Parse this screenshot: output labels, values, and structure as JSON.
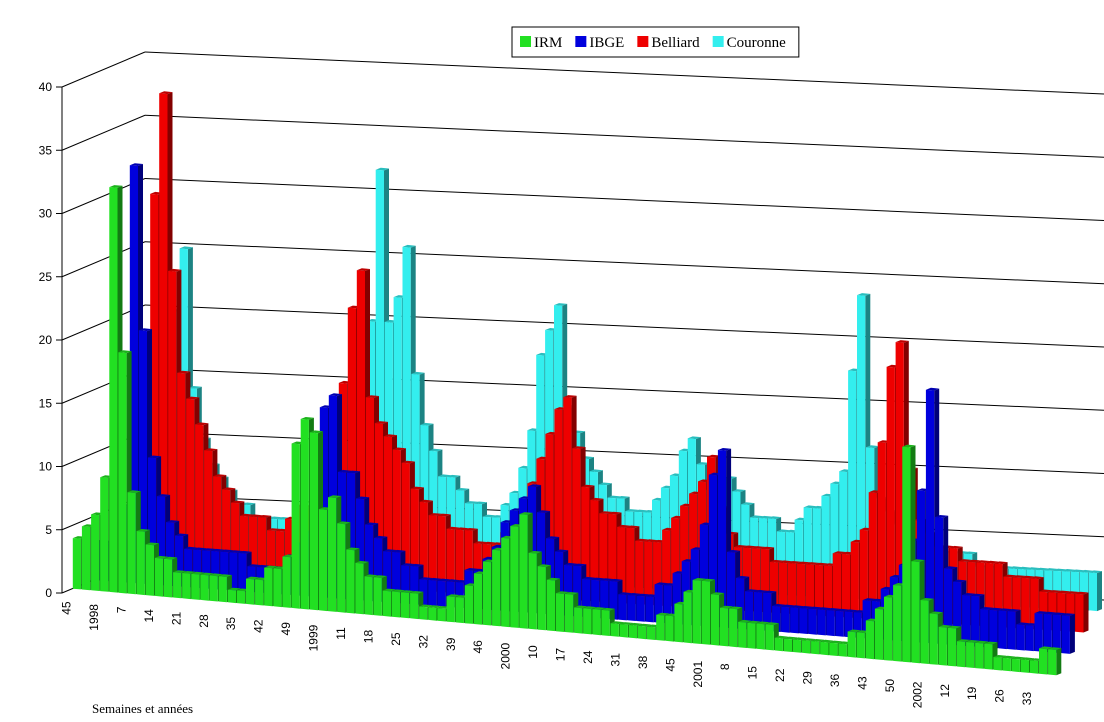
{
  "chart_data": {
    "type": "bar3d",
    "x_label": "Semaines et années",
    "legend": "top",
    "categories": [
      "45",
      null,
      null,
      "1998",
      null,
      null,
      "7",
      null,
      null,
      "14",
      null,
      null,
      "21",
      null,
      null,
      "28",
      null,
      null,
      "35",
      null,
      null,
      "42",
      null,
      null,
      "49",
      null,
      null,
      "1999",
      null,
      null,
      "11",
      null,
      null,
      "18",
      null,
      null,
      "25",
      null,
      null,
      "32",
      null,
      null,
      "39",
      null,
      null,
      "46",
      null,
      null,
      "2000",
      null,
      null,
      "10",
      null,
      null,
      "17",
      null,
      null,
      "24",
      null,
      null,
      "31",
      null,
      null,
      "38",
      null,
      null,
      "45",
      null,
      null,
      "2001",
      null,
      null,
      "8",
      null,
      null,
      "15",
      null,
      null,
      "22",
      null,
      null,
      "29",
      null,
      null,
      "36",
      null,
      null,
      "43",
      null,
      null,
      "50",
      null,
      null,
      "2002",
      null,
      null,
      "12",
      null,
      null,
      "19",
      null,
      null,
      "26",
      null,
      null,
      "33",
      null,
      null
    ],
    "series": [
      {
        "name": "IRM",
        "color": "#22e022",
        "values": [
          4,
          5,
          6,
          9,
          32,
          19,
          8,
          5,
          4,
          3,
          3,
          2,
          2,
          2,
          2,
          2,
          2,
          1,
          1,
          2,
          2,
          3,
          3,
          4,
          13,
          15,
          14,
          8,
          9,
          7,
          5,
          4,
          3,
          3,
          2,
          2,
          2,
          2,
          1,
          1,
          1,
          2,
          2,
          3,
          4,
          5,
          6,
          7,
          8,
          9,
          6,
          5,
          4,
          3,
          3,
          2,
          2,
          2,
          2,
          1,
          1,
          1,
          1,
          1,
          2,
          2,
          3,
          4,
          5,
          5,
          4,
          3,
          3,
          2,
          2,
          2,
          2,
          1,
          1,
          1,
          1,
          1,
          1,
          1,
          1,
          2,
          2,
          3,
          4,
          5,
          6,
          17,
          8,
          5,
          4,
          3,
          3,
          2,
          2,
          2,
          2,
          1,
          1,
          1,
          1,
          1,
          2,
          2
        ]
      },
      {
        "name": "IBGE",
        "color": "#0000dd",
        "values": [
          3,
          3,
          4,
          6,
          33,
          20,
          10,
          7,
          5,
          4,
          3,
          3,
          3,
          3,
          3,
          3,
          3,
          2,
          2,
          2,
          2,
          3,
          4,
          5,
          10,
          15,
          16,
          10,
          10,
          8,
          6,
          5,
          4,
          4,
          3,
          3,
          2,
          2,
          2,
          2,
          2,
          3,
          3,
          4,
          5,
          7,
          8,
          9,
          10,
          8,
          6,
          5,
          4,
          4,
          3,
          3,
          3,
          3,
          2,
          2,
          2,
          2,
          3,
          3,
          4,
          5,
          6,
          8,
          12,
          14,
          6,
          4,
          3,
          3,
          3,
          2,
          2,
          2,
          2,
          2,
          2,
          2,
          2,
          2,
          2,
          3,
          3,
          4,
          5,
          6,
          8,
          12,
          20,
          10,
          6,
          5,
          4,
          4,
          3,
          3,
          3,
          3,
          2,
          2,
          3,
          3,
          3,
          3
        ]
      },
      {
        "name": "Belliard",
        "color": "#ee0000",
        "values": [
          4,
          5,
          6,
          8,
          30,
          38,
          24,
          16,
          14,
          12,
          10,
          8,
          7,
          6,
          5,
          5,
          5,
          4,
          4,
          5,
          6,
          6,
          6,
          7,
          8,
          16,
          22,
          25,
          15,
          13,
          12,
          11,
          10,
          8,
          7,
          6,
          6,
          5,
          5,
          5,
          4,
          4,
          4,
          5,
          6,
          7,
          9,
          11,
          13,
          15,
          16,
          12,
          9,
          8,
          7,
          7,
          6,
          6,
          5,
          5,
          5,
          6,
          7,
          8,
          9,
          10,
          12,
          8,
          6,
          5,
          5,
          5,
          5,
          4,
          4,
          4,
          4,
          4,
          4,
          4,
          5,
          5,
          6,
          7,
          10,
          14,
          20,
          22,
          12,
          8,
          7,
          6,
          6,
          6,
          5,
          5,
          5,
          5,
          5,
          4,
          4,
          4,
          4,
          3,
          3,
          3,
          3,
          3
        ]
      },
      {
        "name": "Couronne",
        "color": "#33eeee",
        "values": [
          3,
          3,
          4,
          5,
          20,
          25,
          14,
          10,
          8,
          7,
          6,
          5,
          5,
          4,
          4,
          4,
          4,
          3,
          3,
          4,
          5,
          5,
          6,
          6,
          8,
          12,
          20,
          32,
          20,
          22,
          26,
          16,
          12,
          10,
          8,
          8,
          7,
          6,
          6,
          5,
          5,
          6,
          7,
          9,
          12,
          18,
          20,
          22,
          14,
          12,
          10,
          9,
          8,
          7,
          7,
          6,
          6,
          6,
          7,
          8,
          9,
          11,
          12,
          10,
          8,
          7,
          9,
          8,
          7,
          6,
          6,
          6,
          5,
          5,
          6,
          7,
          7,
          8,
          9,
          10,
          18,
          24,
          12,
          8,
          7,
          6,
          6,
          5,
          5,
          5,
          4,
          4,
          4,
          4,
          3,
          3,
          3,
          3,
          3,
          3,
          3,
          3,
          3,
          3,
          3,
          3,
          3,
          3
        ]
      }
    ],
    "ylim": [
      0,
      40
    ],
    "yticks": [
      0,
      5,
      10,
      15,
      20,
      25,
      30,
      35,
      40
    ],
    "grid": true
  }
}
